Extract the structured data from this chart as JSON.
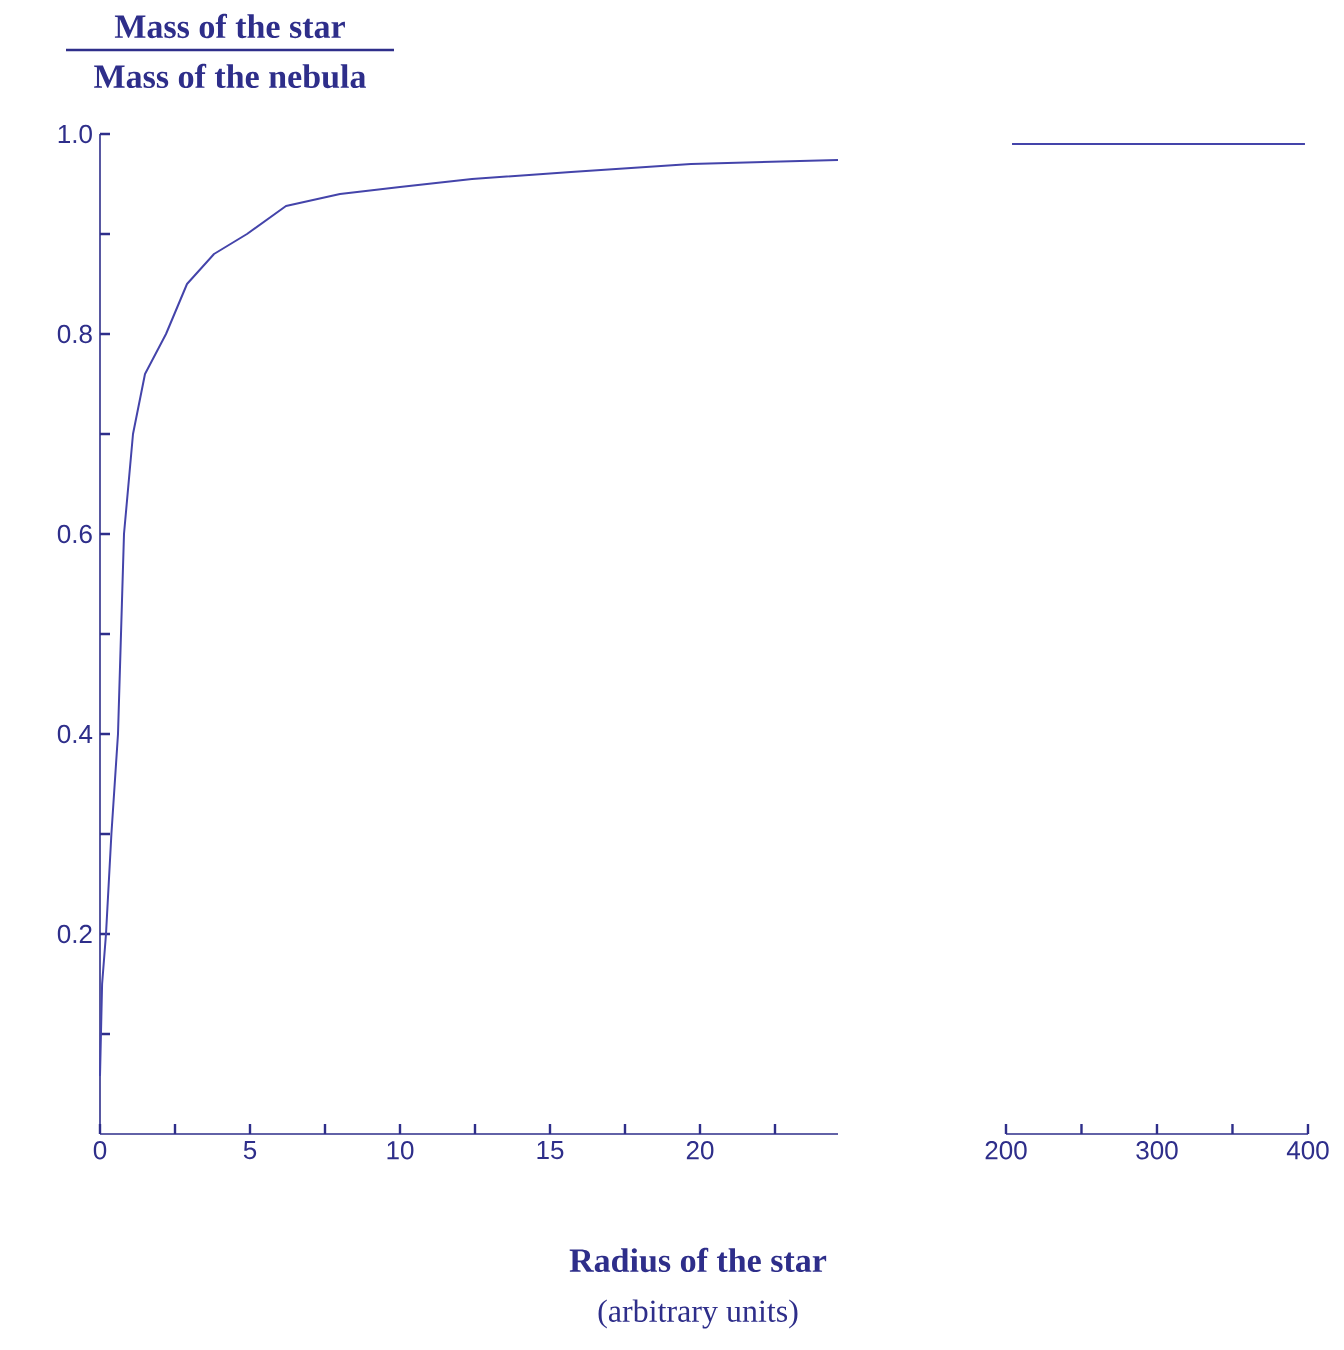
{
  "chart_data": [
    {
      "type": "line",
      "title": "Mass of the star",
      "subtitle": "Mass of the nebula",
      "xlabel": "Radius of the star",
      "annotations": [
        "(arbitrary units)"
      ],
      "marker": "none",
      "line_style": "solid",
      "xlim": [
        0,
        24.6
      ],
      "xticks": [
        0,
        {
          "value": 2.5,
          "label": null
        },
        5,
        {
          "value": 7.5,
          "label": null
        },
        10,
        {
          "value": 12.5,
          "label": null
        },
        15,
        {
          "value": 17.5,
          "label": null
        },
        20,
        {
          "value": 22.5,
          "label": null
        }
      ],
      "ylim": [
        0,
        1.0
      ],
      "yticks": [
        {
          "value": 0.1,
          "label": null
        },
        0.2,
        {
          "value": 0.3,
          "label": null
        },
        0.4,
        {
          "value": 0.5,
          "label": null
        },
        0.6,
        {
          "value": 0.7,
          "label": null
        },
        0.8,
        {
          "value": 0.9,
          "label": null
        },
        {
          "value": 1.0,
          "label": "1.0"
        }
      ],
      "series": [
        {
          "color": "#4444aa",
          "x": [
            0,
            0.07,
            0.2,
            0.38,
            0.6,
            0.73,
            0.8,
            1.1,
            1.5,
            2.2,
            2.9,
            3.8,
            4.9,
            6.2,
            8,
            10,
            12.4,
            15.7,
            19.7,
            24.6
          ],
          "values": [
            0.058,
            0.15,
            0.2,
            0.3,
            0.4,
            0.53,
            0.6,
            0.7,
            0.76,
            0.8,
            0.85,
            0.88,
            0.9,
            0.928,
            0.94,
            0.947,
            0.955,
            0.962,
            0.97,
            0.974
          ]
        }
      ]
    },
    {
      "type": "line",
      "tick_labels": "x",
      "marker": "none",
      "line_style": "solid",
      "xlim": [
        200,
        400
      ],
      "xticks": [
        200,
        {
          "value": 250,
          "label": null
        },
        300,
        {
          "value": 350,
          "label": null
        },
        400
      ],
      "ylim": [
        0,
        1.0
      ],
      "yticks": [
        0.2,
        0.4,
        0.6,
        0.8,
        1
      ],
      "series": [
        {
          "color": "#4444aa",
          "x": [
            204,
            398
          ],
          "values": [
            0.99,
            0.99
          ]
        }
      ]
    }
  ]
}
